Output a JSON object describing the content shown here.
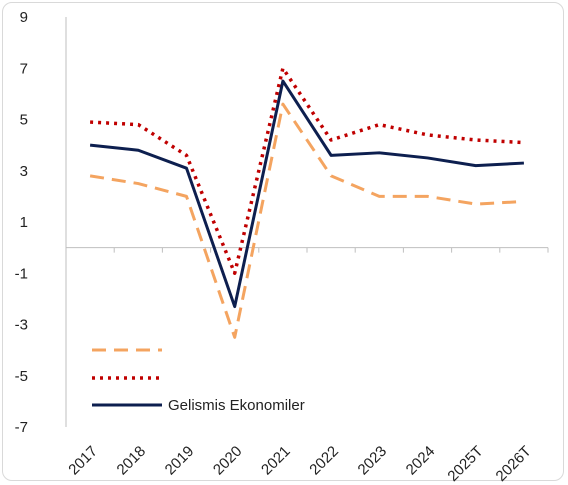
{
  "chart_data": {
    "type": "line",
    "title": "",
    "xlabel": "",
    "ylabel": "",
    "categories": [
      "2017",
      "2018",
      "2019",
      "2020",
      "2021",
      "2022",
      "2023",
      "2024",
      "2025T",
      "2026T"
    ],
    "ylim": [
      -7,
      9
    ],
    "yticks": [
      "9",
      "7",
      "5",
      "3",
      "1",
      "-1",
      "-3",
      "-5",
      "-7"
    ],
    "grid": false,
    "legend_position": "bottom-left",
    "series": [
      {
        "name": "",
        "color": "#f4a460",
        "style": "dashed",
        "values": [
          2.8,
          2.5,
          2.0,
          -3.5,
          5.6,
          2.8,
          2.0,
          2.0,
          1.7,
          1.8
        ]
      },
      {
        "name": "",
        "color": "#c00000",
        "style": "dotted",
        "values": [
          4.9,
          4.8,
          3.6,
          -1.0,
          7.0,
          4.2,
          4.8,
          4.4,
          4.2,
          4.1
        ]
      },
      {
        "name": "Gelismis Ekonomiler",
        "color": "#0d1f4f",
        "style": "solid",
        "values": [
          4.0,
          3.8,
          3.1,
          -2.3,
          6.5,
          3.6,
          3.7,
          3.5,
          3.2,
          3.3
        ]
      }
    ]
  }
}
